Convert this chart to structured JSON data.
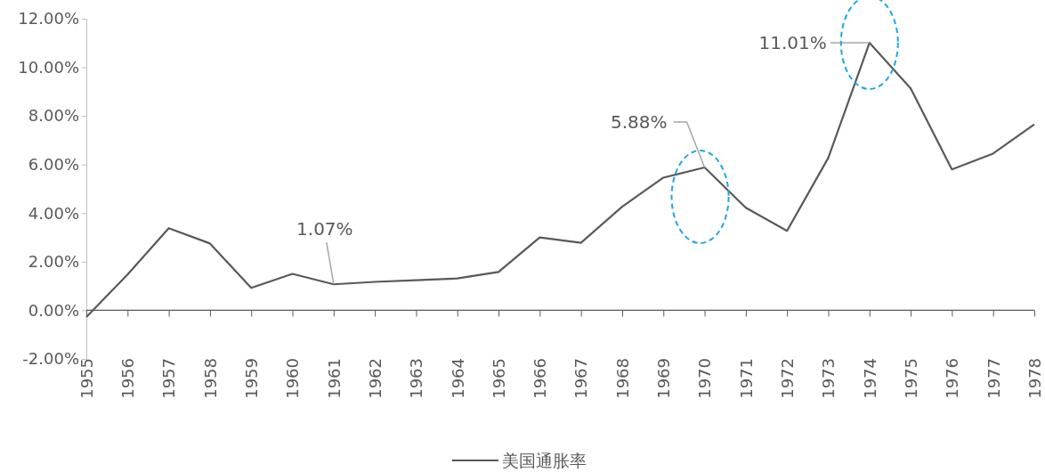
{
  "chart_data": {
    "type": "line",
    "categories": [
      "1955",
      "1956",
      "1957",
      "1958",
      "1959",
      "1960",
      "1961",
      "1962",
      "1963",
      "1964",
      "1965",
      "1966",
      "1967",
      "1968",
      "1969",
      "1970",
      "1971",
      "1972",
      "1973",
      "1974",
      "1975",
      "1976",
      "1977",
      "1978"
    ],
    "series": [
      {
        "name": "美国通胀率",
        "color": "#595959",
        "values": [
          -0.28,
          1.47,
          3.38,
          2.75,
          0.92,
          1.5,
          1.07,
          1.17,
          1.24,
          1.31,
          1.58,
          3.0,
          2.78,
          4.26,
          5.46,
          5.88,
          4.22,
          3.27,
          6.27,
          11.01,
          9.13,
          5.8,
          6.45,
          7.65
        ]
      }
    ],
    "ylim": [
      -2,
      12
    ],
    "yticks": [
      {
        "value": -2,
        "label": "-2.00%"
      },
      {
        "value": 0,
        "label": "0.00%"
      },
      {
        "value": 2,
        "label": "2.00%"
      },
      {
        "value": 4,
        "label": "4.00%"
      },
      {
        "value": 6,
        "label": "6.00%"
      },
      {
        "value": 8,
        "label": "8.00%"
      },
      {
        "value": 10,
        "label": "10.00%"
      },
      {
        "value": 12,
        "label": "12.00%"
      }
    ],
    "annotations": [
      {
        "text": "1.07%",
        "x": "1961",
        "y": 1.07
      },
      {
        "text": "5.88%",
        "x": "1970",
        "y": 5.88
      },
      {
        "text": "11.01%",
        "x": "1974",
        "y": 11.01
      }
    ],
    "ref_lines": [
      {
        "axis": "y",
        "value": 0,
        "color": "#595959"
      }
    ],
    "grid": false,
    "legend": "bottom",
    "marker": "none",
    "line_style": "solid"
  }
}
